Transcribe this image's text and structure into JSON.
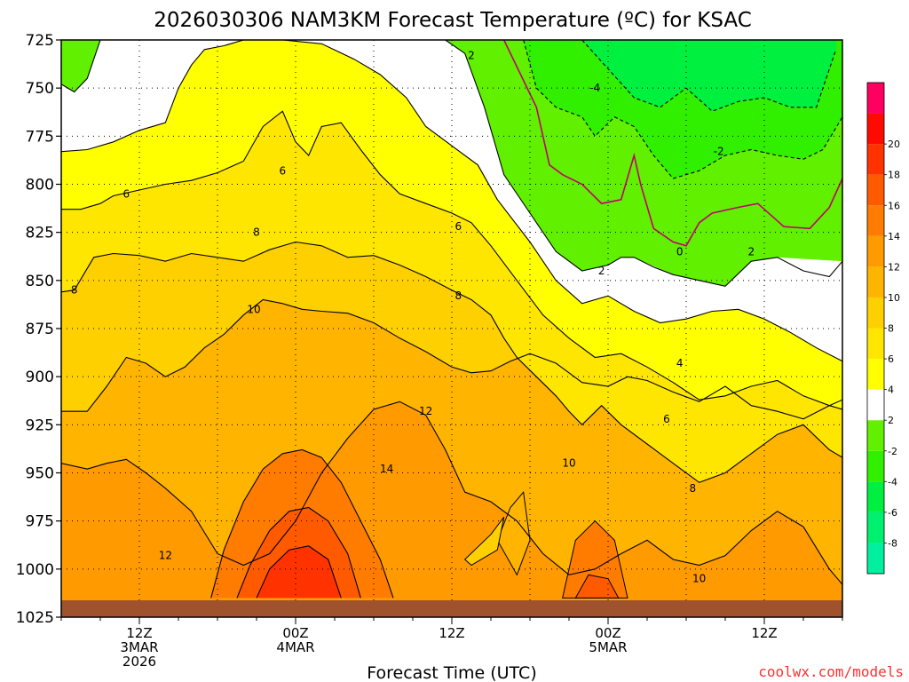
{
  "chart_data": {
    "type": "heatmap",
    "title": "2026030306 NAM3KM Forecast Temperature (ºC) for KSAC",
    "xlabel": "Forecast Time (UTC)",
    "ylabel": "",
    "credit": "coolwx.com/models",
    "x_unit": "hours since 2026-03-03 06Z",
    "xlim": [
      0,
      60
    ],
    "x_ticks": [
      {
        "hour": 6,
        "lines": [
          "12Z",
          "3MAR",
          "2026"
        ]
      },
      {
        "hour": 18,
        "lines": [
          "00Z",
          "4MAR"
        ]
      },
      {
        "hour": 30,
        "lines": [
          "12Z"
        ]
      },
      {
        "hour": 42,
        "lines": [
          "00Z",
          "5MAR"
        ]
      },
      {
        "hour": 54,
        "lines": [
          "12Z"
        ]
      }
    ],
    "y_unit": "hPa",
    "ylim": [
      725,
      1025
    ],
    "y_ticks": [
      725,
      750,
      775,
      800,
      825,
      850,
      875,
      900,
      925,
      950,
      975,
      1000,
      1025
    ],
    "grid": true,
    "colorbar": {
      "levels": [
        -10,
        -8,
        -6,
        -4,
        -2,
        2,
        4,
        6,
        8,
        10,
        12,
        14,
        16,
        18,
        20,
        22
      ],
      "colors": [
        "#00f0a0",
        "#00f070",
        "#00f040",
        "#30f000",
        "#60f000",
        "#ffffff",
        "#ffff00",
        "#ffe600",
        "#ffd000",
        "#ffb400",
        "#ff9a00",
        "#ff7c00",
        "#ff5a00",
        "#ff3200",
        "#ff0a00",
        "#ff0060"
      ],
      "tick_labels": [
        "-8",
        "-6",
        "-4",
        "-2",
        "2",
        "4",
        "6",
        "8",
        "10",
        "12",
        "14",
        "16",
        "18",
        "20"
      ],
      "tick_values": [
        -8,
        -6,
        -4,
        -2,
        2,
        4,
        6,
        8,
        10,
        12,
        14,
        16,
        18,
        20
      ]
    },
    "series": [
      {
        "name": "0 C isotherm",
        "level": 0,
        "x": [
          34.0,
          36.5,
          37.5,
          38.5,
          40.0,
          41.5,
          43.0,
          44.0,
          44.5,
          45.5,
          47.0,
          48.0,
          49.0,
          50.0,
          52.0,
          53.5,
          55.5,
          57.5,
          59.0,
          60.0
        ],
        "p": [
          725,
          760,
          790,
          795,
          800,
          810,
          808,
          785,
          800,
          823,
          830,
          832,
          820,
          815,
          812,
          810,
          822,
          823,
          812,
          797
        ]
      },
      {
        "name": "2 C isotherm",
        "level": 2,
        "x": [
          0.0,
          1.0,
          2.0,
          3.0,
          3.0,
          29.5,
          31.0,
          32.5,
          34.0,
          36.0,
          38.0,
          40.0,
          42.0,
          43.0,
          44.0,
          45.5,
          47.0,
          49.0,
          51.0,
          53.0,
          55.0,
          57.0,
          59.0,
          60.0
        ],
        "p": [
          748,
          752,
          745,
          725,
          725,
          725,
          732,
          760,
          795,
          815,
          835,
          845,
          842,
          838,
          838,
          843,
          847,
          850,
          853,
          840,
          838,
          845,
          848,
          840
        ]
      },
      {
        "name": "-2 C isotherm",
        "level": -2,
        "x": [
          35.5,
          36.5,
          38.0,
          40.0,
          41.0,
          42.5,
          44.0,
          45.5,
          47.0,
          49.0,
          51.0,
          53.0,
          55.0,
          57.0,
          58.5,
          60.0
        ],
        "p": [
          725,
          750,
          760,
          765,
          775,
          765,
          770,
          785,
          797,
          793,
          785,
          782,
          785,
          787,
          782,
          765
        ]
      },
      {
        "name": "-4 C isotherm",
        "level": -4,
        "x": [
          40.0,
          42.0,
          44.0,
          46.0,
          48.0,
          50.0,
          52.0,
          54.0,
          56.0,
          58.0,
          59.5
        ],
        "p": [
          725,
          740,
          755,
          760,
          750,
          762,
          757,
          755,
          760,
          760,
          730
        ]
      },
      {
        "name": "4 C isotherm",
        "level": 4,
        "x": [
          0.0,
          2.0,
          4.0,
          6.0,
          8.0,
          9.0,
          10.0,
          11.0,
          12.5,
          14.0,
          17.0,
          20.0,
          22.5,
          24.5,
          26.5,
          28.0,
          30.0,
          32.0,
          33.5,
          36.0,
          38.0,
          40.0,
          42.0,
          44.0,
          46.0,
          48.0,
          50.0,
          52.0,
          54.0,
          56.0,
          58.0,
          60.0
        ],
        "p": [
          783,
          782,
          778,
          772,
          768,
          750,
          738,
          730,
          728,
          725,
          725,
          727,
          735,
          743,
          755,
          770,
          780,
          790,
          808,
          830,
          850,
          862,
          858,
          866,
          872,
          870,
          866,
          865,
          870,
          877,
          885,
          892
        ]
      },
      {
        "name": "6 C isotherm",
        "level": 6,
        "x": [
          0.0,
          1.5,
          3.0,
          4.0,
          6.0,
          8.0,
          10.0,
          12.0,
          14.0,
          15.5,
          17.0,
          18.0,
          19.0,
          20.0,
          21.5,
          23.0,
          24.5,
          26.0,
          28.0,
          30.0,
          31.5,
          33.0,
          35.0,
          37.0,
          39.0,
          41.0,
          43.0,
          45.0,
          47.0,
          49.0,
          51.0,
          53.0,
          55.0,
          57.0,
          59.0,
          60.0
        ],
        "p": [
          813,
          813,
          810,
          806,
          803,
          800,
          798,
          794,
          788,
          770,
          762,
          778,
          785,
          770,
          768,
          782,
          795,
          805,
          810,
          815,
          820,
          832,
          850,
          868,
          880,
          890,
          888,
          895,
          903,
          912,
          910,
          905,
          902,
          910,
          915,
          917
        ]
      },
      {
        "name": "8 C isotherm",
        "level": 8,
        "x": [
          0.0,
          1.0,
          2.5,
          4.0,
          6.0,
          8.0,
          10.0,
          12.0,
          14.0,
          16.0,
          18.0,
          20.0,
          22.0,
          24.0,
          26.0,
          28.0,
          30.0,
          31.5,
          33.0,
          34.0,
          35.0,
          36.5,
          38.0,
          39.0,
          40.0,
          41.5,
          43.0,
          45.0,
          47.0,
          49.0,
          51.0,
          53.0,
          55.0,
          57.0,
          59.0,
          60.0
        ],
        "p": [
          856,
          855,
          838,
          836,
          837,
          840,
          836,
          838,
          840,
          834,
          830,
          832,
          838,
          837,
          842,
          848,
          855,
          860,
          868,
          880,
          890,
          900,
          910,
          918,
          925,
          915,
          925,
          935,
          945,
          955,
          950,
          940,
          930,
          925,
          938,
          942
        ]
      },
      {
        "name": "10 C isotherm",
        "level": 10,
        "x": [
          0.0,
          2.0,
          3.5,
          5.0,
          6.5,
          8.0,
          9.5,
          11.0,
          12.5,
          14.0,
          15.5,
          17.0,
          18.5,
          20.0,
          22.0,
          24.0,
          26.0,
          28.0,
          30.0,
          31.5,
          33.0,
          34.5,
          36.0,
          38.0,
          40.0,
          42.0,
          43.5,
          45.0,
          47.0,
          49.0,
          51.0,
          53.0,
          55.0,
          57.0,
          59.0,
          60.0
        ],
        "p": [
          918,
          918,
          905,
          890,
          893,
          900,
          895,
          885,
          878,
          868,
          860,
          862,
          865,
          866,
          867,
          872,
          880,
          887,
          895,
          898,
          897,
          892,
          888,
          893,
          903,
          905,
          900,
          902,
          908,
          913,
          905,
          915,
          918,
          922,
          915,
          912
        ]
      },
      {
        "name": "12 C isotherm",
        "level": 12,
        "x": [
          0.0,
          2.0,
          3.5,
          5.0,
          6.5,
          8.0,
          10.0,
          12.0,
          14.0,
          16.0,
          18.0,
          20.0,
          22.0,
          24.0,
          26.0,
          28.0,
          29.5,
          31.0,
          33.0,
          35.0,
          37.0,
          39.0,
          41.0,
          43.0,
          45.0,
          47.0,
          49.0,
          51.0,
          53.0,
          55.0,
          57.0,
          59.0,
          60.0
        ],
        "p": [
          945,
          948,
          945,
          943,
          950,
          958,
          970,
          992,
          998,
          992,
          975,
          950,
          932,
          917,
          913,
          920,
          938,
          960,
          965,
          975,
          992,
          1003,
          1000,
          992,
          985,
          995,
          998,
          993,
          980,
          970,
          978,
          1000,
          1008
        ]
      },
      {
        "name": "14 C isotherm",
        "level": 14,
        "x": [
          11.5,
          12.5,
          14.0,
          15.5,
          17.0,
          18.5,
          20.0,
          21.5,
          23.0,
          24.5,
          25.5
        ],
        "p": [
          1015,
          990,
          965,
          948,
          940,
          938,
          942,
          955,
          975,
          995,
          1015
        ]
      },
      {
        "name": "16 C isotherm",
        "level": 16,
        "x": [
          13.5,
          14.5,
          16.0,
          17.5,
          19.0,
          20.5,
          22.0,
          23.0
        ],
        "p": [
          1015,
          998,
          980,
          970,
          968,
          975,
          992,
          1015
        ]
      },
      {
        "name": "18 C isotherm",
        "level": 18,
        "x": [
          15.0,
          16.0,
          17.5,
          19.0,
          20.5,
          21.5
        ],
        "p": [
          1015,
          1000,
          990,
          988,
          995,
          1015
        ]
      }
    ],
    "contour_labels": [
      {
        "text": "2",
        "x": 31.5,
        "p": 733
      },
      {
        "text": "-4",
        "x": 41.0,
        "p": 750
      },
      {
        "text": "-2",
        "x": 50.5,
        "p": 783
      },
      {
        "text": "0",
        "x": 47.5,
        "p": 835
      },
      {
        "text": "2",
        "x": 41.5,
        "p": 845
      },
      {
        "text": "2",
        "x": 53.0,
        "p": 835
      },
      {
        "text": "6",
        "x": 17.0,
        "p": 793
      },
      {
        "text": "6",
        "x": 5.0,
        "p": 805
      },
      {
        "text": "6",
        "x": 30.5,
        "p": 822
      },
      {
        "text": "8",
        "x": 15.0,
        "p": 825
      },
      {
        "text": "8",
        "x": 1.0,
        "p": 855
      },
      {
        "text": "8",
        "x": 30.5,
        "p": 858
      },
      {
        "text": "4",
        "x": 47.5,
        "p": 893
      },
      {
        "text": "10",
        "x": 14.8,
        "p": 865
      },
      {
        "text": "6",
        "x": 46.5,
        "p": 922
      },
      {
        "text": "12",
        "x": 28.0,
        "p": 918
      },
      {
        "text": "14",
        "x": 25.0,
        "p": 948
      },
      {
        "text": "10",
        "x": 39.0,
        "p": 945
      },
      {
        "text": "8",
        "x": 48.5,
        "p": 958
      },
      {
        "text": "12",
        "x": 8.0,
        "p": 993
      },
      {
        "text": "10",
        "x": 49.0,
        "p": 1005
      }
    ]
  }
}
